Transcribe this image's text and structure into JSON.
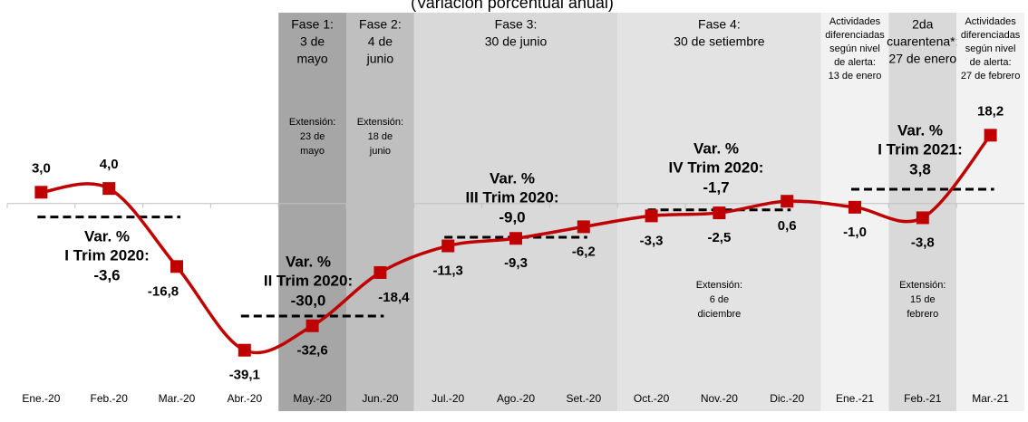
{
  "chart_data": {
    "type": "line",
    "subtitle": "(Variación porcentual anual)",
    "categories": [
      "Ene.-20",
      "Feb.-20",
      "Mar.-20",
      "Abr.-20",
      "May.-20",
      "Jun.-20",
      "Jul.-20",
      "Ago.-20",
      "Set.-20",
      "Oct.-20",
      "Nov.-20",
      "Dic.-20",
      "Ene.-21",
      "Feb.-21",
      "Mar.-21"
    ],
    "series": [
      {
        "color": "#c00000",
        "values": [
          3.0,
          4.0,
          -16.8,
          -39.1,
          -32.6,
          -18.4,
          -11.3,
          -9.3,
          -6.2,
          -3.3,
          -2.5,
          0.6,
          -1.0,
          -3.8,
          18.2
        ],
        "value_labels": [
          "3,0",
          "4,0",
          "-16,8",
          "-39,1",
          "-32,6",
          "-18,4",
          "-11,3",
          "-9,3",
          "-6,2",
          "-3,3",
          "-2,5",
          "0,6",
          "-1,0",
          "-3,8",
          "18,2"
        ]
      }
    ],
    "ylim": [
      -44,
      47
    ],
    "quarterly": {
      "name": "Var. %",
      "color": "#000000",
      "labels": [
        "I Trim 2020:",
        "II Trim 2020:",
        "III Trim 2020:",
        "IV Trim 2020:",
        "I Trim 2021:"
      ],
      "values": [
        -3.6,
        -30.0,
        -9.0,
        -1.7,
        3.8
      ],
      "value_labels": [
        "-3,6",
        "-30,0",
        "-9,0",
        "-1,7",
        "3,8"
      ]
    },
    "phases": [
      {
        "color": "#a6a6a6",
        "lines": [
          "Fase 1:",
          "3 de",
          "mayo"
        ],
        "extension": [
          "Extensión:",
          "23 de",
          "mayo"
        ]
      },
      {
        "color": "#bfbfbf",
        "lines": [
          "Fase 2:",
          "4 de",
          "junio"
        ],
        "extension": [
          "Extensión:",
          "18 de",
          "junio"
        ]
      },
      {
        "color": "#d9d9d9",
        "lines": [
          "Fase 3:",
          "30 de junio"
        ]
      },
      {
        "color": "#e3e3e3",
        "lines": [
          "Fase 4:",
          "30 de setiembre"
        ],
        "extension": [
          "Extensión:",
          "6 de",
          "diciembre"
        ]
      },
      {
        "color": "#f2f2f2",
        "lines": [
          "Actividades",
          "diferenciadas",
          "según nivel",
          "de alerta:",
          "13 de enero"
        ]
      },
      {
        "color": "#d9d9d9",
        "lines": [
          "2da",
          "cuarentena*:",
          "27 de enero"
        ],
        "extension": [
          "Extensión:",
          "15 de",
          "febrero"
        ]
      },
      {
        "color": "#f2f2f2",
        "lines": [
          "Actividades",
          "diferenciadas",
          "según nivel",
          "de alerta:",
          "27 de febrero"
        ]
      }
    ]
  }
}
